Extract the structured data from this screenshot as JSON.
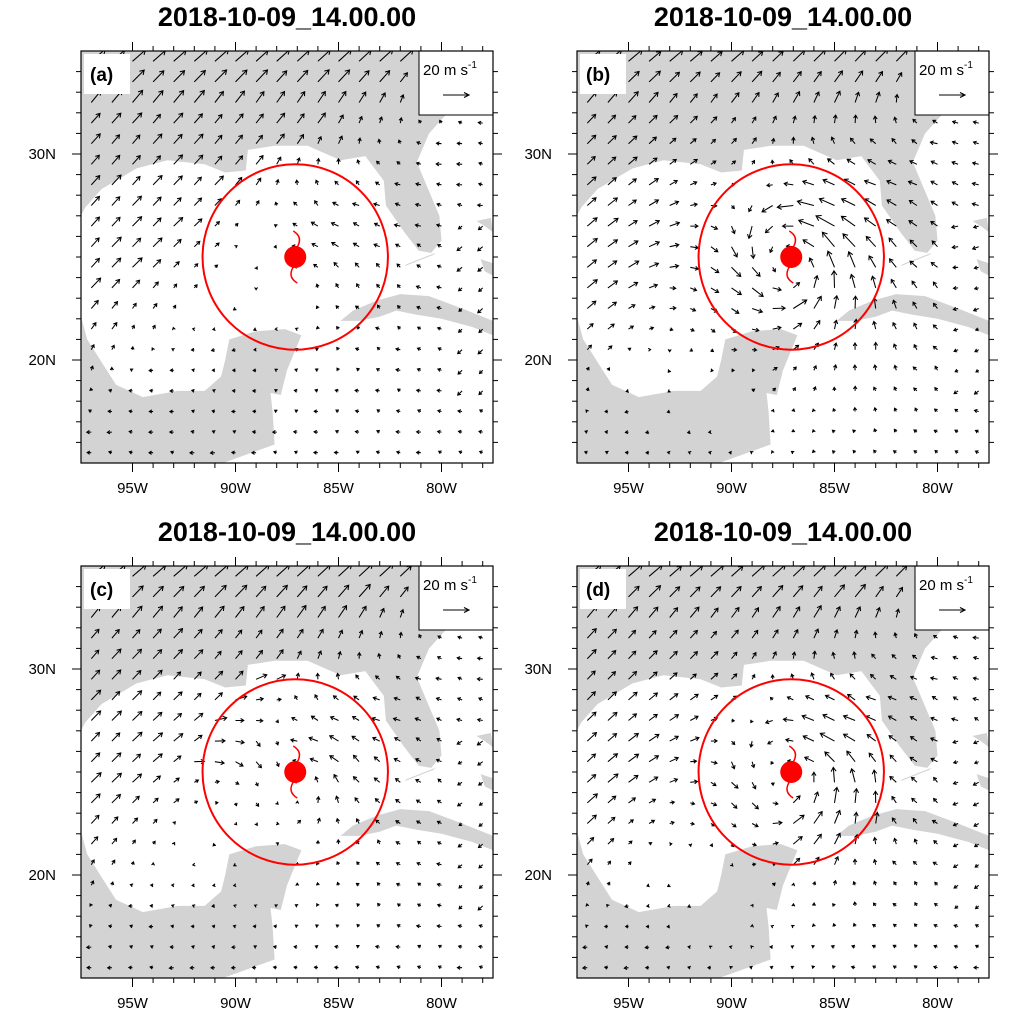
{
  "figure": {
    "panels": [
      {
        "id": "a",
        "label": "(a)",
        "title": "2018-10-09_14.00.00",
        "variant": 0
      },
      {
        "id": "b",
        "label": "(b)",
        "title": "2018-10-09_14.00.00",
        "variant": 1
      },
      {
        "id": "c",
        "label": "(c)",
        "title": "2018-10-09_14.00.00",
        "variant": 2
      },
      {
        "id": "d",
        "label": "(d)",
        "title": "2018-10-09_14.00.00",
        "variant": 3
      }
    ],
    "x_ticks": [
      "95W",
      "90W",
      "85W",
      "80W"
    ],
    "y_ticks": [
      "30N",
      "20N"
    ],
    "reference_vector": {
      "label": "20 m s",
      "superscript": "-1",
      "speed": 20
    },
    "lon_range": [
      -97.5,
      -77.5
    ],
    "lat_range": [
      15,
      35
    ],
    "storm_center": {
      "lon": -87.1,
      "lat": 25.0
    },
    "circle_radius_deg": 4.5,
    "colors": {
      "land": "#d3d3d3",
      "ocean": "#ffffff",
      "storm": "#ff0000",
      "vector": "#000000"
    }
  }
}
